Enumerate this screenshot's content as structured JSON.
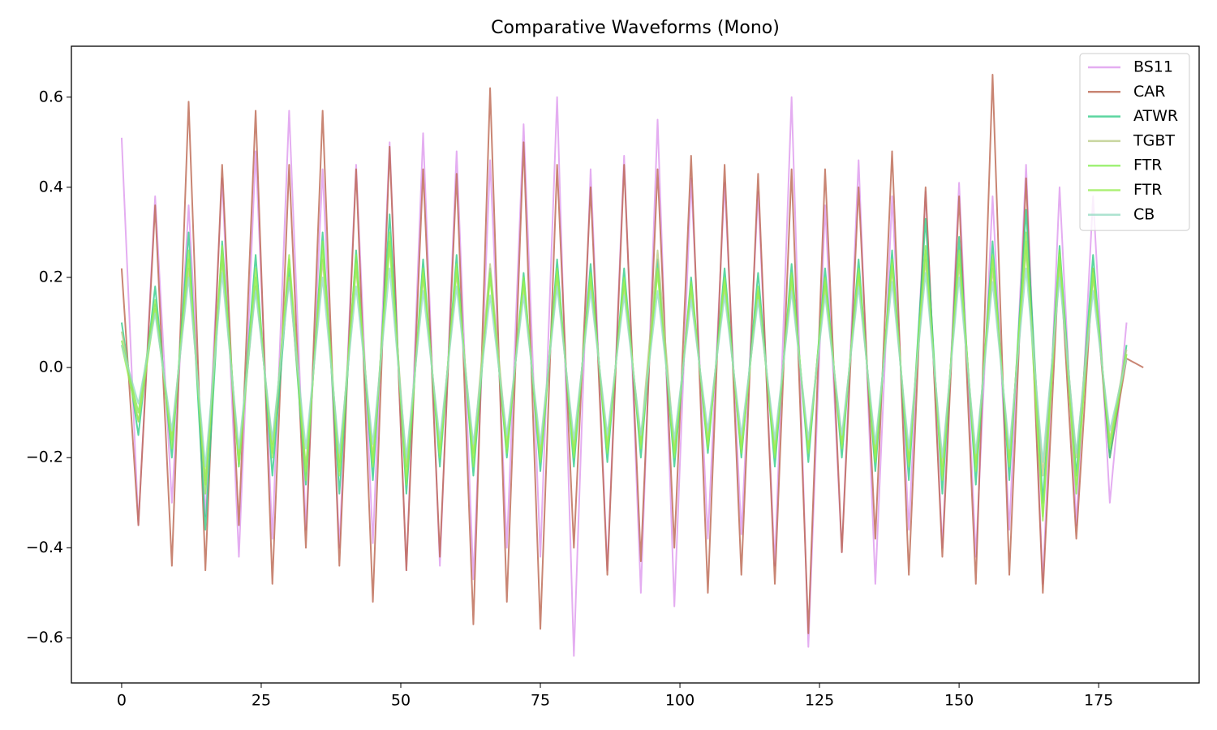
{
  "chart_data": {
    "type": "line",
    "title": "Comparative Waveforms (Mono)",
    "x": [
      0,
      3,
      6,
      9,
      12,
      15,
      18,
      21,
      24,
      27,
      30,
      33,
      36,
      39,
      42,
      45,
      48,
      51,
      54,
      57,
      60,
      63,
      66,
      69,
      72,
      75,
      78,
      81,
      84,
      87,
      90,
      93,
      96,
      99,
      102,
      105,
      108,
      111,
      114,
      117,
      120,
      123,
      126,
      129,
      132,
      135,
      138,
      141,
      144,
      147,
      150,
      153,
      156,
      159,
      162,
      165,
      168,
      171,
      174,
      177,
      180,
      183
    ],
    "series": [
      {
        "name": "BS11",
        "color": "#dd99ee",
        "values": [
          0.51,
          -0.35,
          0.38,
          -0.3,
          0.36,
          -0.33,
          0.42,
          -0.42,
          0.48,
          -0.38,
          0.57,
          -0.36,
          0.44,
          -0.4,
          0.45,
          -0.39,
          0.5,
          -0.45,
          0.52,
          -0.44,
          0.48,
          -0.47,
          0.46,
          -0.4,
          0.54,
          -0.42,
          0.6,
          -0.64,
          0.44,
          -0.45,
          0.47,
          -0.5,
          0.55,
          -0.53,
          0.42,
          -0.38,
          0.41,
          -0.37,
          0.39,
          -0.44,
          0.6,
          -0.62,
          0.36,
          -0.41,
          0.46,
          -0.48,
          0.38,
          -0.36,
          0.39,
          -0.4,
          0.41,
          -0.42,
          0.38,
          -0.36,
          0.45,
          -0.48,
          0.4,
          -0.35,
          0.38,
          -0.3,
          0.1,
          null
        ]
      },
      {
        "name": "CAR",
        "color": "#bb6650",
        "values": [
          0.22,
          -0.35,
          0.36,
          -0.44,
          0.59,
          -0.45,
          0.45,
          -0.35,
          0.57,
          -0.48,
          0.45,
          -0.4,
          0.57,
          -0.44,
          0.44,
          -0.52,
          0.49,
          -0.45,
          0.44,
          -0.42,
          0.43,
          -0.57,
          0.62,
          -0.52,
          0.5,
          -0.58,
          0.45,
          -0.4,
          0.4,
          -0.46,
          0.45,
          -0.43,
          0.44,
          -0.4,
          0.47,
          -0.5,
          0.45,
          -0.46,
          0.43,
          -0.48,
          0.44,
          -0.59,
          0.44,
          -0.41,
          0.4,
          -0.38,
          0.48,
          -0.46,
          0.4,
          -0.42,
          0.38,
          -0.48,
          0.65,
          -0.46,
          0.42,
          -0.5,
          0.26,
          -0.38,
          0.22,
          -0.2,
          0.02,
          0.0
        ]
      },
      {
        "name": "ATWR",
        "color": "#33cc88",
        "values": [
          0.1,
          -0.15,
          0.18,
          -0.2,
          0.3,
          -0.36,
          0.28,
          -0.22,
          0.25,
          -0.24,
          0.22,
          -0.26,
          0.3,
          -0.28,
          0.26,
          -0.25,
          0.34,
          -0.28,
          0.24,
          -0.22,
          0.25,
          -0.24,
          0.22,
          -0.2,
          0.21,
          -0.23,
          0.24,
          -0.22,
          0.23,
          -0.21,
          0.22,
          -0.2,
          0.24,
          -0.22,
          0.2,
          -0.19,
          0.22,
          -0.2,
          0.21,
          -0.22,
          0.23,
          -0.21,
          0.22,
          -0.2,
          0.24,
          -0.23,
          0.26,
          -0.25,
          0.33,
          -0.28,
          0.29,
          -0.26,
          0.28,
          -0.25,
          0.35,
          -0.3,
          0.27,
          -0.24,
          0.25,
          -0.2,
          0.05,
          null
        ]
      },
      {
        "name": "TGBT",
        "color": "#bbcc88",
        "values": [
          0.08,
          -0.12,
          0.14,
          -0.16,
          0.22,
          -0.25,
          0.24,
          -0.2,
          0.18,
          -0.17,
          0.2,
          -0.22,
          0.24,
          -0.21,
          0.22,
          -0.2,
          0.28,
          -0.22,
          0.2,
          -0.18,
          0.21,
          -0.19,
          0.23,
          -0.17,
          0.18,
          -0.19,
          0.2,
          -0.18,
          0.19,
          -0.17,
          0.18,
          -0.16,
          0.26,
          -0.18,
          0.17,
          -0.16,
          0.18,
          -0.17,
          0.17,
          -0.18,
          0.19,
          -0.18,
          0.18,
          -0.17,
          0.2,
          -0.19,
          0.22,
          -0.21,
          0.24,
          -0.22,
          0.23,
          -0.21,
          0.22,
          -0.2,
          0.26,
          -0.24,
          0.22,
          -0.2,
          0.2,
          -0.16,
          0.04,
          null
        ]
      },
      {
        "name": "FTR",
        "color": "#88ee55",
        "values": [
          0.06,
          -0.1,
          0.15,
          -0.18,
          0.26,
          -0.28,
          0.25,
          -0.22,
          0.2,
          -0.19,
          0.24,
          -0.25,
          0.28,
          -0.23,
          0.25,
          -0.22,
          0.3,
          -0.26,
          0.22,
          -0.2,
          0.23,
          -0.22,
          0.21,
          -0.19,
          0.2,
          -0.21,
          0.22,
          -0.2,
          0.21,
          -0.19,
          0.2,
          -0.18,
          0.22,
          -0.2,
          0.19,
          -0.18,
          0.2,
          -0.19,
          0.18,
          -0.2,
          0.21,
          -0.19,
          0.2,
          -0.18,
          0.22,
          -0.21,
          0.24,
          -0.22,
          0.27,
          -0.25,
          0.26,
          -0.23,
          0.25,
          -0.22,
          0.3,
          -0.33,
          0.26,
          -0.28,
          0.22,
          -0.18,
          0.03,
          null
        ]
      },
      {
        "name": "FTR",
        "color": "#99ee55",
        "values": [
          0.05,
          -0.12,
          0.13,
          -0.16,
          0.24,
          -0.26,
          0.27,
          -0.21,
          0.22,
          -0.2,
          0.25,
          -0.23,
          0.26,
          -0.24,
          0.23,
          -0.21,
          0.27,
          -0.24,
          0.21,
          -0.19,
          0.22,
          -0.2,
          0.2,
          -0.18,
          0.19,
          -0.2,
          0.21,
          -0.19,
          0.2,
          -0.18,
          0.19,
          -0.17,
          0.21,
          -0.19,
          0.18,
          -0.17,
          0.19,
          -0.18,
          0.17,
          -0.19,
          0.2,
          -0.18,
          0.19,
          -0.17,
          0.21,
          -0.2,
          0.23,
          -0.21,
          0.26,
          -0.24,
          0.25,
          -0.22,
          0.24,
          -0.21,
          0.28,
          -0.34,
          0.25,
          -0.26,
          0.21,
          -0.17,
          0.03,
          null
        ]
      },
      {
        "name": "CB",
        "color": "#99dcc4",
        "values": [
          0.05,
          -0.08,
          0.12,
          -0.14,
          0.2,
          -0.22,
          0.21,
          -0.18,
          0.17,
          -0.16,
          0.19,
          -0.18,
          0.2,
          -0.19,
          0.18,
          -0.17,
          0.22,
          -0.2,
          0.17,
          -0.16,
          0.18,
          -0.17,
          0.16,
          -0.15,
          0.16,
          -0.17,
          0.18,
          -0.16,
          0.17,
          -0.15,
          0.16,
          -0.15,
          0.17,
          -0.16,
          0.15,
          -0.14,
          0.16,
          -0.15,
          0.15,
          -0.16,
          0.17,
          -0.16,
          0.16,
          -0.15,
          0.18,
          -0.17,
          0.19,
          -0.18,
          0.21,
          -0.2,
          0.2,
          -0.19,
          0.19,
          -0.18,
          0.22,
          -0.21,
          0.2,
          -0.19,
          0.17,
          -0.14,
          0.02,
          null
        ]
      }
    ],
    "alpha": 0.8,
    "xlim": [
      -9.0,
      193
    ],
    "ylim": [
      -0.7,
      0.713
    ],
    "xticks": [
      0,
      25,
      50,
      75,
      100,
      125,
      150,
      175
    ],
    "yticks": [
      {
        "value": -0.6,
        "label": "−0.6"
      },
      {
        "value": -0.4,
        "label": "−0.4"
      },
      {
        "value": -0.2,
        "label": "−0.2"
      },
      {
        "value": 0,
        "label": "0.0"
      },
      0.2,
      0.4,
      0.6
    ],
    "grid": false,
    "legend": "upper right"
  }
}
